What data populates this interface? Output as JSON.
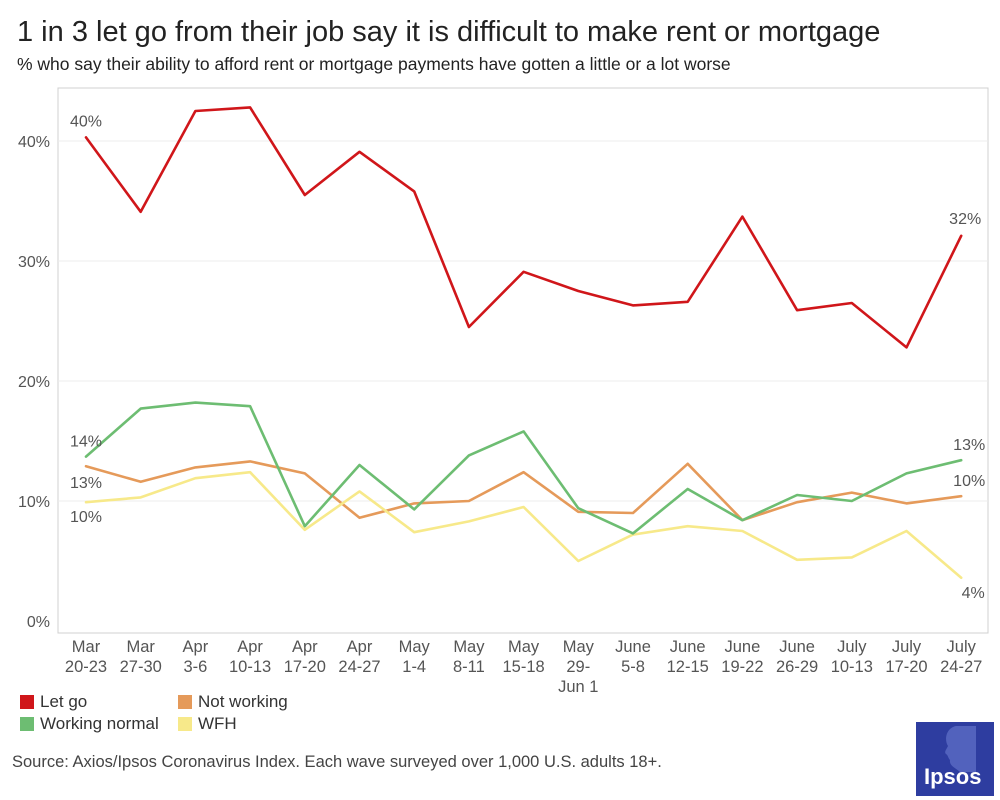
{
  "header": {
    "title": "1 in 3 let go from their job say it is difficult to make rent or mortgage",
    "subtitle": "% who say their ability to afford rent or mortgage payments have gotten a little or a lot worse"
  },
  "chart_data": {
    "type": "line",
    "categories": [
      [
        "Mar",
        "20-23"
      ],
      [
        "Mar",
        "27-30"
      ],
      [
        "Apr",
        "3-6"
      ],
      [
        "Apr",
        "10-13"
      ],
      [
        "Apr",
        "17-20"
      ],
      [
        "Apr",
        "24-27"
      ],
      [
        "May",
        "1-4"
      ],
      [
        "May",
        "8-11"
      ],
      [
        "May",
        "15-18"
      ],
      [
        "May",
        "29-",
        "Jun 1"
      ],
      [
        "June",
        "5-8"
      ],
      [
        "June",
        "12-15"
      ],
      [
        "June",
        "19-22"
      ],
      [
        "June",
        "26-29"
      ],
      [
        "July",
        "10-13"
      ],
      [
        "July",
        "17-20"
      ],
      [
        "July",
        "24-27"
      ]
    ],
    "yticks": [
      "0%",
      "10%",
      "20%",
      "30%",
      "40%"
    ],
    "ylim": [
      0,
      44
    ],
    "grid": true,
    "series": [
      {
        "name": "Not working",
        "color": "#e59a5a",
        "values": [
          12.9,
          11.6,
          12.8,
          13.3,
          12.3,
          8.6,
          9.8,
          10.0,
          12.4,
          9.1,
          9.0,
          13.1,
          8.4,
          9.9,
          10.7,
          9.8,
          10.4
        ],
        "start_label": "13%",
        "end_label": "10%"
      },
      {
        "name": "WFH",
        "color": "#f7e98a",
        "values": [
          9.9,
          10.3,
          11.9,
          12.4,
          7.6,
          10.8,
          7.4,
          8.3,
          9.5,
          5.0,
          7.2,
          7.9,
          7.5,
          5.1,
          5.3,
          7.5,
          3.6
        ],
        "start_label": "10%",
        "end_label": "4%"
      },
      {
        "name": "Working normal",
        "color": "#6dbd72",
        "values": [
          13.7,
          17.7,
          18.2,
          17.9,
          7.9,
          13.0,
          9.3,
          13.8,
          15.8,
          9.4,
          7.3,
          11.0,
          8.4,
          10.5,
          10.0,
          12.3,
          13.4
        ],
        "start_label": "14%",
        "end_label": "13%"
      },
      {
        "name": "Let go",
        "color": "#d0161a",
        "values": [
          40.3,
          34.1,
          42.5,
          42.8,
          35.5,
          39.1,
          35.8,
          24.5,
          29.1,
          27.5,
          26.3,
          26.6,
          33.7,
          25.9,
          26.5,
          22.8,
          32.1
        ],
        "start_label": "40%",
        "end_label": "32%"
      }
    ]
  },
  "legend": [
    {
      "name": "Let go",
      "color": "#d0161a"
    },
    {
      "name": "Not working",
      "color": "#e59a5a"
    },
    {
      "name": "Working normal",
      "color": "#6dbd72"
    },
    {
      "name": "WFH",
      "color": "#f7e98a"
    }
  ],
  "source": "Source: Axios/Ipsos Coronavirus Index. Each wave surveyed over 1,000 U.S. adults 18+.",
  "logo": {
    "text": "Ipsos",
    "color": "#2e3da0"
  }
}
